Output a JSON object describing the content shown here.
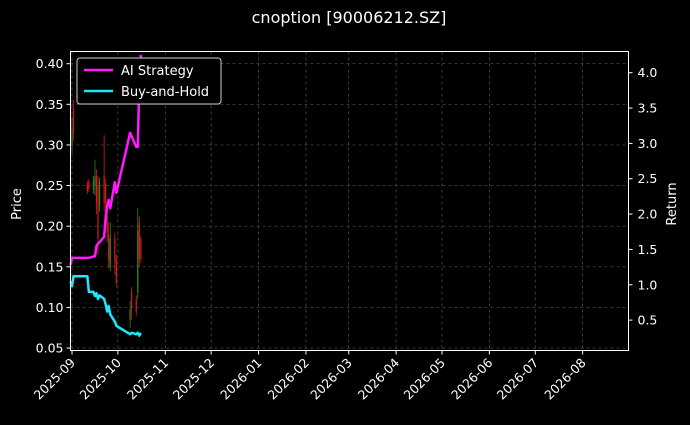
{
  "chart_data": {
    "type": "line",
    "title": "cnoption [90006212.SZ]",
    "ylabel": "Price",
    "y2label": "Return",
    "grid": true,
    "legend": {
      "placement": "top-left"
    },
    "x_ticks": [
      "2025-09",
      "2025-10",
      "2025-11",
      "2025-12",
      "2026-01",
      "2026-02",
      "2026-03",
      "2026-04",
      "2026-05",
      "2026-06",
      "2026-07",
      "2026-08"
    ],
    "xlim": [
      "2025-08-31",
      "2026-08-31"
    ],
    "y_ticks": [
      "0.05",
      "0.10",
      "0.15",
      "0.20",
      "0.25",
      "0.30",
      "0.35",
      "0.40"
    ],
    "ylim": [
      0.047,
      0.415
    ],
    "y2_ticks": [
      "0.5",
      "1.0",
      "1.5",
      "2.0",
      "2.5",
      "3.0",
      "3.5",
      "4.0"
    ],
    "y2lim": [
      0.07,
      4.3
    ],
    "colors": {
      "up": "#2e8b1e",
      "down": "#d41c1c",
      "ai": "#ff1aff",
      "bh": "#1ae8ff",
      "grid": "#555555",
      "axis": "#ffffff"
    },
    "candles": [
      {
        "date": "2025-09-01",
        "open": 0.3,
        "close": 0.32,
        "low": 0.29,
        "high": 0.335
      },
      {
        "date": "2025-09-02",
        "open": 0.345,
        "close": 0.315,
        "low": 0.305,
        "high": 0.355
      },
      {
        "date": "2025-09-11",
        "open": 0.252,
        "close": 0.243,
        "low": 0.24,
        "high": 0.256
      },
      {
        "date": "2025-09-12",
        "open": 0.255,
        "close": 0.246,
        "low": 0.242,
        "high": 0.258
      },
      {
        "date": "2025-09-15",
        "open": 0.245,
        "close": 0.255,
        "low": 0.24,
        "high": 0.262
      },
      {
        "date": "2025-09-16",
        "open": 0.25,
        "close": 0.262,
        "low": 0.238,
        "high": 0.282
      },
      {
        "date": "2025-09-17",
        "open": 0.262,
        "close": 0.228,
        "low": 0.215,
        "high": 0.27
      },
      {
        "date": "2025-09-18",
        "open": 0.25,
        "close": 0.185,
        "low": 0.165,
        "high": 0.262
      },
      {
        "date": "2025-09-19",
        "open": 0.225,
        "close": 0.255,
        "low": 0.218,
        "high": 0.26
      },
      {
        "date": "2025-09-22",
        "open": 0.262,
        "close": 0.228,
        "low": 0.218,
        "high": 0.312
      },
      {
        "date": "2025-09-23",
        "open": 0.252,
        "close": 0.228,
        "low": 0.205,
        "high": 0.258
      },
      {
        "date": "2025-09-24",
        "open": 0.212,
        "close": 0.192,
        "low": 0.18,
        "high": 0.218
      },
      {
        "date": "2025-09-25",
        "open": 0.19,
        "close": 0.158,
        "low": 0.148,
        "high": 0.205
      },
      {
        "date": "2025-09-26",
        "open": 0.15,
        "close": 0.185,
        "low": 0.145,
        "high": 0.205
      },
      {
        "date": "2025-09-29",
        "open": 0.185,
        "close": 0.158,
        "low": 0.14,
        "high": 0.192
      },
      {
        "date": "2025-09-30",
        "open": 0.16,
        "close": 0.13,
        "low": 0.125,
        "high": 0.165
      },
      {
        "date": "2025-10-09",
        "open": 0.085,
        "close": 0.098,
        "low": 0.075,
        "high": 0.108
      },
      {
        "date": "2025-10-10",
        "open": 0.12,
        "close": 0.1,
        "low": 0.085,
        "high": 0.125
      },
      {
        "date": "2025-10-13",
        "open": 0.11,
        "close": 0.095,
        "low": 0.09,
        "high": 0.115
      },
      {
        "date": "2025-10-14",
        "open": 0.118,
        "close": 0.195,
        "low": 0.11,
        "high": 0.222
      },
      {
        "date": "2025-10-15",
        "open": 0.205,
        "close": 0.16,
        "low": 0.15,
        "high": 0.212
      },
      {
        "date": "2025-10-16",
        "open": 0.185,
        "close": 0.16,
        "low": 0.155,
        "high": 0.188
      }
    ],
    "series": [
      {
        "name": "AI Strategy",
        "axis": "right",
        "points": [
          [
            "2025-08-31",
            1.28
          ],
          [
            "2025-09-01",
            1.38
          ],
          [
            "2025-09-02",
            1.38
          ],
          [
            "2025-09-11",
            1.38
          ],
          [
            "2025-09-12",
            1.38
          ],
          [
            "2025-09-15",
            1.4
          ],
          [
            "2025-09-16",
            1.4
          ],
          [
            "2025-09-17",
            1.55
          ],
          [
            "2025-09-18",
            1.58
          ],
          [
            "2025-09-19",
            1.6
          ],
          [
            "2025-09-22",
            1.68
          ],
          [
            "2025-09-23",
            1.95
          ],
          [
            "2025-09-24",
            2.12
          ],
          [
            "2025-09-25",
            2.2
          ],
          [
            "2025-09-26",
            2.08
          ],
          [
            "2025-09-29",
            2.45
          ],
          [
            "2025-09-30",
            2.3
          ],
          [
            "2025-10-09",
            3.15
          ],
          [
            "2025-10-10",
            3.1
          ],
          [
            "2025-10-13",
            2.95
          ],
          [
            "2025-10-14",
            2.95
          ],
          [
            "2025-10-15",
            3.85
          ],
          [
            "2025-10-16",
            4.25
          ]
        ]
      },
      {
        "name": "Buy-and-Hold",
        "axis": "right",
        "points": [
          [
            "2025-08-31",
            1.05
          ],
          [
            "2025-09-01",
            0.98
          ],
          [
            "2025-09-02",
            1.12
          ],
          [
            "2025-09-11",
            1.12
          ],
          [
            "2025-09-12",
            0.9
          ],
          [
            "2025-09-15",
            0.9
          ],
          [
            "2025-09-16",
            0.84
          ],
          [
            "2025-09-17",
            0.88
          ],
          [
            "2025-09-18",
            0.8
          ],
          [
            "2025-09-19",
            0.85
          ],
          [
            "2025-09-22",
            0.8
          ],
          [
            "2025-09-23",
            0.72
          ],
          [
            "2025-09-24",
            0.62
          ],
          [
            "2025-09-25",
            0.7
          ],
          [
            "2025-09-26",
            0.58
          ],
          [
            "2025-09-29",
            0.48
          ],
          [
            "2025-09-30",
            0.42
          ],
          [
            "2025-10-09",
            0.3
          ],
          [
            "2025-10-10",
            0.32
          ],
          [
            "2025-10-13",
            0.3
          ],
          [
            "2025-10-14",
            0.32
          ],
          [
            "2025-10-15",
            0.28
          ],
          [
            "2025-10-16",
            0.32
          ]
        ]
      }
    ]
  }
}
